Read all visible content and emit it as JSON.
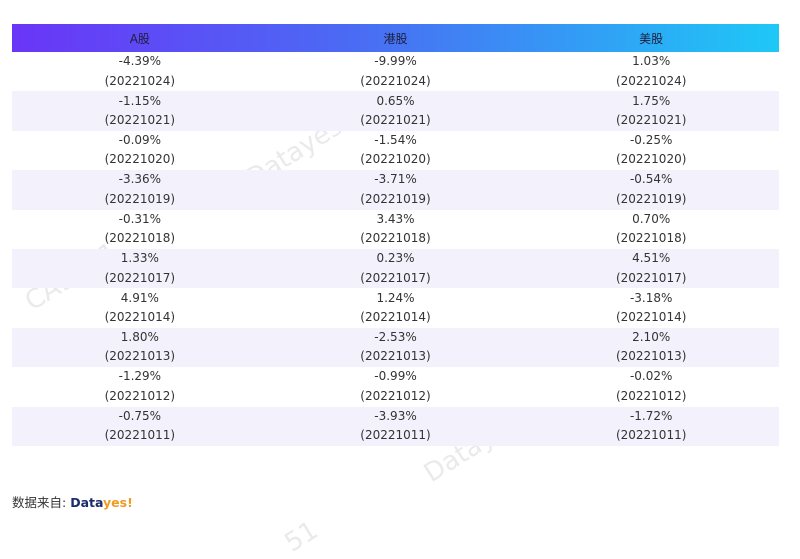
{
  "table": {
    "headers": [
      "A股",
      "港股",
      "美股"
    ],
    "rows": [
      [
        {
          "value": "-4.39%",
          "date": "(20221024)"
        },
        {
          "value": "-9.99%",
          "date": "(20221024)"
        },
        {
          "value": "1.03%",
          "date": "(20221024)"
        }
      ],
      [
        {
          "value": "-1.15%",
          "date": "(20221021)"
        },
        {
          "value": "0.65%",
          "date": "(20221021)"
        },
        {
          "value": "1.75%",
          "date": "(20221021)"
        }
      ],
      [
        {
          "value": "-0.09%",
          "date": "(20221020)"
        },
        {
          "value": "-1.54%",
          "date": "(20221020)"
        },
        {
          "value": "-0.25%",
          "date": "(20221020)"
        }
      ],
      [
        {
          "value": "-3.36%",
          "date": "(20221019)"
        },
        {
          "value": "-3.71%",
          "date": "(20221019)"
        },
        {
          "value": "-0.54%",
          "date": "(20221019)"
        }
      ],
      [
        {
          "value": "-0.31%",
          "date": "(20221018)"
        },
        {
          "value": "3.43%",
          "date": "(20221018)"
        },
        {
          "value": "0.70%",
          "date": "(20221018)"
        }
      ],
      [
        {
          "value": "1.33%",
          "date": "(20221017)"
        },
        {
          "value": "0.23%",
          "date": "(20221017)"
        },
        {
          "value": "4.51%",
          "date": "(20221017)"
        }
      ],
      [
        {
          "value": "4.91%",
          "date": "(20221014)"
        },
        {
          "value": "1.24%",
          "date": "(20221014)"
        },
        {
          "value": "-3.18%",
          "date": "(20221014)"
        }
      ],
      [
        {
          "value": "1.80%",
          "date": "(20221013)"
        },
        {
          "value": "-2.53%",
          "date": "(20221013)"
        },
        {
          "value": "2.10%",
          "date": "(20221013)"
        }
      ],
      [
        {
          "value": "-1.29%",
          "date": "(20221012)"
        },
        {
          "value": "-0.99%",
          "date": "(20221012)"
        },
        {
          "value": "-0.02%",
          "date": "(20221012)"
        }
      ],
      [
        {
          "value": "-0.75%",
          "date": "(20221011)"
        },
        {
          "value": "-3.93%",
          "date": "(20221011)"
        },
        {
          "value": "-1.72%",
          "date": "(20221011)"
        }
      ]
    ]
  },
  "source": {
    "label": "数据来自: ",
    "brand_part1": "Data",
    "brand_part2": "yes!"
  },
  "watermarks": [
    "Datayes!",
    "Datayes!",
    "CA9B51",
    "51"
  ],
  "colors": {
    "header_gradient_start": "#6a35f7",
    "header_gradient_end": "#1ec8f6",
    "row_alt": "#f3f2fc",
    "brand_dark": "#1a2b6b",
    "brand_orange": "#f19a21"
  }
}
